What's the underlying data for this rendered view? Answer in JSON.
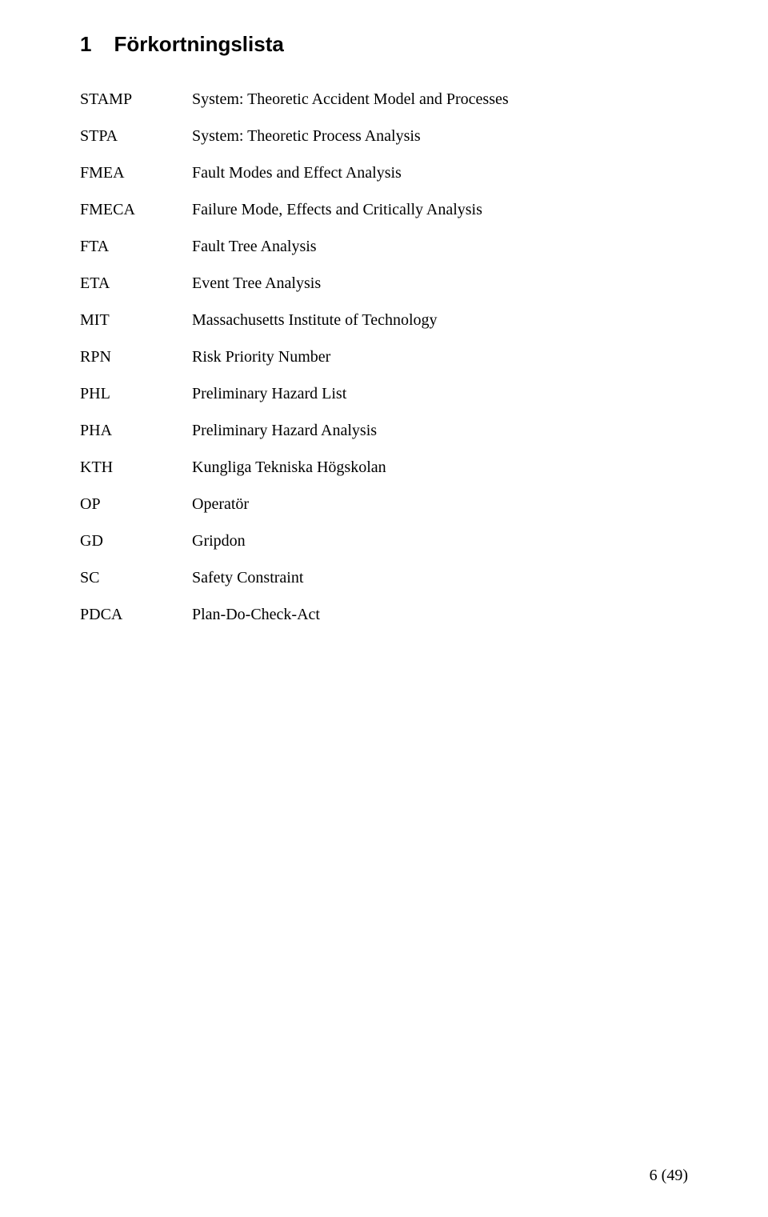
{
  "heading": {
    "number": "1",
    "title": "Förkortningslista"
  },
  "entries": [
    {
      "abbrev": "STAMP",
      "definition": "System: Theoretic Accident Model and Processes"
    },
    {
      "abbrev": "STPA",
      "definition": "System: Theoretic Process Analysis"
    },
    {
      "abbrev": "FMEA",
      "definition": "Fault Modes and Effect Analysis"
    },
    {
      "abbrev": "FMECA",
      "definition": "Failure Mode, Effects and Critically Analysis"
    },
    {
      "abbrev": "FTA",
      "definition": "Fault Tree Analysis"
    },
    {
      "abbrev": "ETA",
      "definition": "Event Tree Analysis"
    },
    {
      "abbrev": "MIT",
      "definition": "Massachusetts Institute of Technology"
    },
    {
      "abbrev": "RPN",
      "definition": "Risk Priority Number"
    },
    {
      "abbrev": "PHL",
      "definition": "Preliminary Hazard List"
    },
    {
      "abbrev": "PHA",
      "definition": "Preliminary Hazard Analysis"
    },
    {
      "abbrev": "KTH",
      "definition": "Kungliga Tekniska Högskolan"
    },
    {
      "abbrev": "OP",
      "definition": "Operatör"
    },
    {
      "abbrev": "GD",
      "definition": "Gripdon"
    },
    {
      "abbrev": "SC",
      "definition": "Safety Constraint"
    },
    {
      "abbrev": "PDCA",
      "definition": "Plan-Do-Check-Act"
    }
  ],
  "page_number": "6 (49)",
  "colors": {
    "background": "#ffffff",
    "text": "#000000"
  },
  "typography": {
    "heading_font": "Arial",
    "heading_size_pt": 20,
    "heading_weight": "bold",
    "body_font": "Times New Roman",
    "body_size_pt": 15
  }
}
